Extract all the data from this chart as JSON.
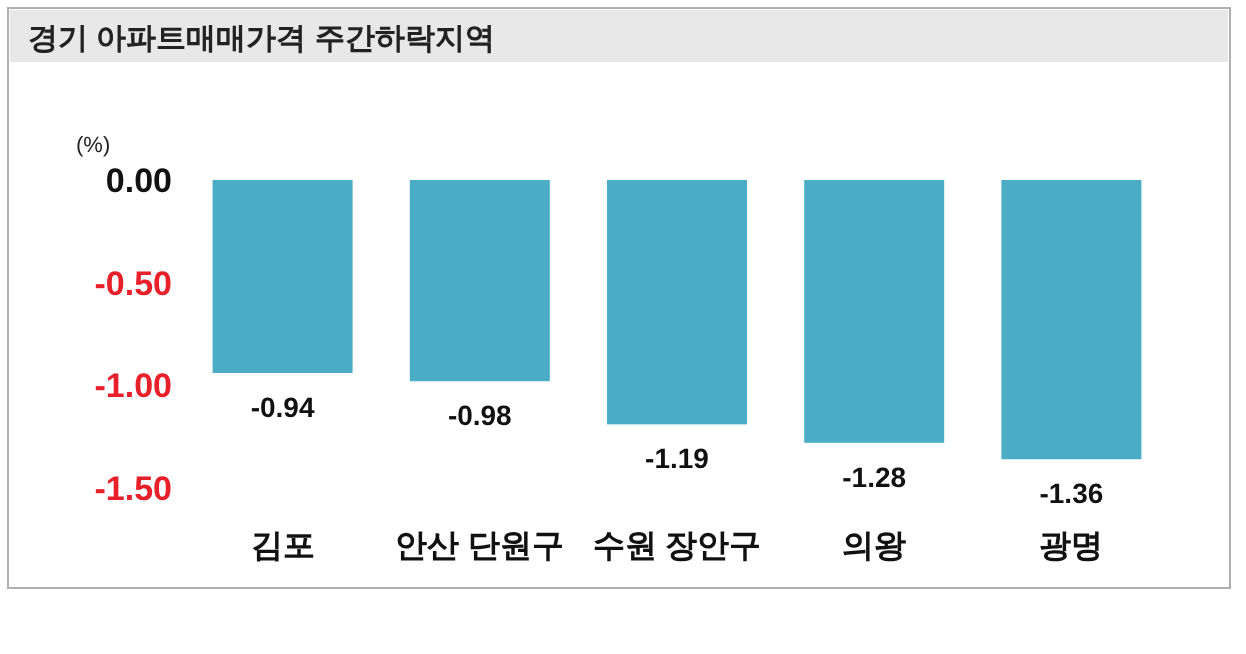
{
  "chart_data": {
    "type": "bar",
    "title": "경기 아파트매매가격 주간하락지역",
    "ylabel": "(%)",
    "categories": [
      "김포",
      "안산 단원구",
      "수원 장안구",
      "의왕",
      "광명"
    ],
    "values": [
      -0.94,
      -0.98,
      -1.19,
      -1.28,
      -1.36
    ],
    "color": "#4bacc6",
    "ylim": [
      -1.5,
      0
    ],
    "yticks": [
      {
        "value": 0,
        "label": "0.00"
      },
      {
        "value": -0.5,
        "label": "-0.50"
      },
      {
        "value": -1,
        "label": "-1.00"
      },
      {
        "value": -1.5,
        "label": "-1.50"
      }
    ],
    "data_labels": true,
    "grid": false
  }
}
